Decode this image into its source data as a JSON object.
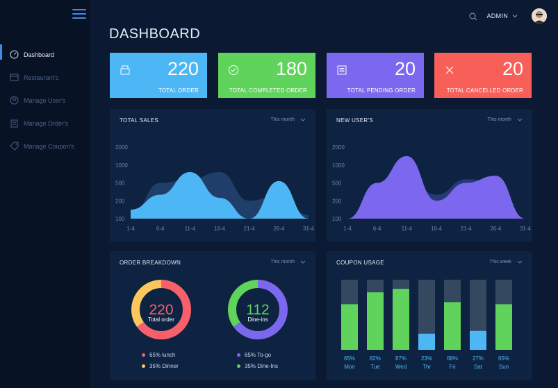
{
  "nav": {
    "items": [
      {
        "label": "Dashboard",
        "icon": "speedometer-icon"
      },
      {
        "label": "Restaurant's",
        "icon": "store-icon"
      },
      {
        "label": "Manage User's",
        "icon": "users-icon"
      },
      {
        "label": "Manage Order's",
        "icon": "order-icon"
      },
      {
        "label": "Manage Coupon's",
        "icon": "tag-icon"
      }
    ]
  },
  "header": {
    "title": "DASHBOARD",
    "user": "ADMIN"
  },
  "stats": [
    {
      "value": "220",
      "label": "TOTAL ORDER",
      "color": "#4db6f5"
    },
    {
      "value": "180",
      "label": "TOTAL COMPLETED ORDER",
      "color": "#5fd35b"
    },
    {
      "value": "20",
      "label": "TOTAL PENDING ORDER",
      "color": "#7b68ee"
    },
    {
      "value": "20",
      "label": "TOTAL CANCELLED ORDER",
      "color": "#f75f58"
    }
  ],
  "panels": {
    "total_sales": {
      "title": "TOTAL SALES",
      "filter": "This month"
    },
    "new_users": {
      "title": "NEW USER'S",
      "filter": "This month"
    },
    "order_breakdown": {
      "title": "ORDER BREAKDOWN",
      "filter": "This month"
    },
    "coupon_usage": {
      "title": "COUPON USAGE",
      "filter": "This week"
    }
  },
  "donuts": [
    {
      "center_value": "220",
      "center_label": "Total order",
      "segments": [
        {
          "label": "65% lunch",
          "pct": 65,
          "color": "#f7606a"
        },
        {
          "label": "35% Dinner",
          "pct": 35,
          "color": "#fbc75d"
        }
      ]
    },
    {
      "center_value": "112",
      "center_label": "Dine-ins",
      "segments": [
        {
          "label": "65% To-go",
          "pct": 65,
          "color": "#7b68ee"
        },
        {
          "label": "35% Dine-Ins",
          "pct": 35,
          "color": "#5fd35b"
        }
      ]
    }
  ],
  "chart_data": [
    {
      "type": "area",
      "title": "TOTAL SALES",
      "x": [
        "1-4",
        "6-4",
        "11-4",
        "16-4",
        "21-4",
        "26-4",
        "31-4"
      ],
      "y_ticks": [
        "100",
        "200",
        "500",
        "1000",
        "2000"
      ],
      "series": [
        {
          "values": [
            150,
            300,
            800,
            250,
            100,
            550,
            100
          ],
          "color": "#4db6f5"
        },
        {
          "values": [
            120,
            500,
            600,
            800,
            200,
            300,
            120
          ],
          "color": "#1f3f6a"
        }
      ]
    },
    {
      "type": "area",
      "title": "NEW USER'S",
      "x": [
        "1-4",
        "6-4",
        "11-4",
        "16-4",
        "21-4",
        "26-4",
        "31-4"
      ],
      "y_ticks": [
        "100",
        "200",
        "500",
        "1000",
        "2000"
      ],
      "series": [
        {
          "values": [
            100,
            500,
            1500,
            200,
            500,
            700,
            100
          ],
          "color": "#7b68ee"
        },
        {
          "values": [
            100,
            250,
            700,
            300,
            600,
            550,
            100
          ],
          "color": "#263a7a"
        }
      ]
    },
    {
      "type": "bar",
      "title": "COUPON USAGE",
      "categories": [
        "Mon",
        "Tue",
        "Wed",
        "Thr",
        "Fri",
        "Sat",
        "Sun"
      ],
      "values": [
        65,
        82,
        87,
        23,
        68,
        27,
        65
      ],
      "labels": [
        "65%",
        "82%",
        "87%",
        "23%",
        "68%",
        "27%",
        "65%"
      ],
      "colors": [
        "#5fd35b",
        "#5fd35b",
        "#5fd35b",
        "#4db6f5",
        "#5fd35b",
        "#4db6f5",
        "#5fd35b"
      ],
      "track_color": "#34495f"
    }
  ]
}
